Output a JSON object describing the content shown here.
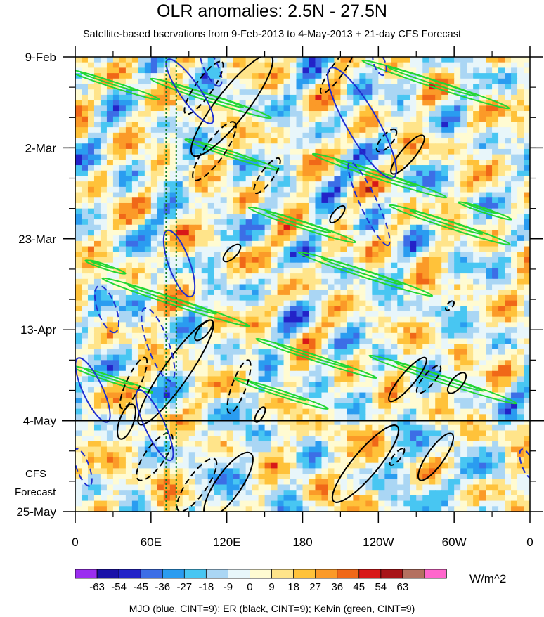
{
  "chart_data": {
    "type": "heatmap",
    "title": "OLR anomalies: 2.5N - 27.5N",
    "subtitle": "Satellite-based bservations from 9-Feb-2013 to 4-May-2013 + 21-day CFS Forecast",
    "x_ticks": [
      {
        "lon": 0,
        "label": "0"
      },
      {
        "lon": 60,
        "label": "60E"
      },
      {
        "lon": 120,
        "label": "120E"
      },
      {
        "lon": 180,
        "label": "180"
      },
      {
        "lon": 240,
        "label": "120W"
      },
      {
        "lon": 300,
        "label": "60W"
      },
      {
        "lon": 360,
        "label": "0"
      }
    ],
    "xlim": [
      0,
      360
    ],
    "y_ticks": [
      {
        "date": "2013-02-09",
        "label": "9-Feb"
      },
      {
        "date": "2013-03-02",
        "label": "2-Mar"
      },
      {
        "date": "2013-03-23",
        "label": "23-Mar"
      },
      {
        "date": "2013-04-13",
        "label": "13-Apr"
      },
      {
        "date": "2013-05-04",
        "label": "4-May"
      },
      {
        "date": "2013-05-25",
        "label": "25-May"
      }
    ],
    "ylim": [
      "2013-02-09",
      "2013-05-25"
    ],
    "observation_end": "2013-05-04",
    "forecast_label_line1": "CFS",
    "forecast_label_line2": "Forecast",
    "reference_longitudes": [
      72,
      80
    ],
    "colorbar": {
      "units": "W/m^2",
      "levels": [
        -63,
        -54,
        -45,
        -36,
        -27,
        -18,
        -9,
        0,
        9,
        18,
        27,
        36,
        45,
        54,
        63
      ],
      "labels": [
        "-63",
        "-54",
        "-45",
        "-36",
        "-27",
        "-18",
        "-9",
        "0",
        "9",
        "18",
        "27",
        "36",
        "45",
        "54",
        "63"
      ],
      "colors": [
        "#9b2df0",
        "#1a10a8",
        "#2323c8",
        "#3c6ee6",
        "#2a9cf0",
        "#48c6f2",
        "#aad6f4",
        "#e8f6fa",
        "#fffbd2",
        "#ffe48a",
        "#ffc23a",
        "#fb9a28",
        "#f06818",
        "#d81818",
        "#a81418",
        "#b47060",
        "#ff66cc"
      ]
    },
    "legend_note": "MJO (blue, CINT=9); ER (black, CINT=9); Kelvin (green, CINT=9)",
    "series": [
      {
        "name": "MJO",
        "color": "#1f2fd0"
      },
      {
        "name": "ER",
        "color": "#000000"
      },
      {
        "name": "Kelvin",
        "color": "#22d633"
      }
    ]
  }
}
